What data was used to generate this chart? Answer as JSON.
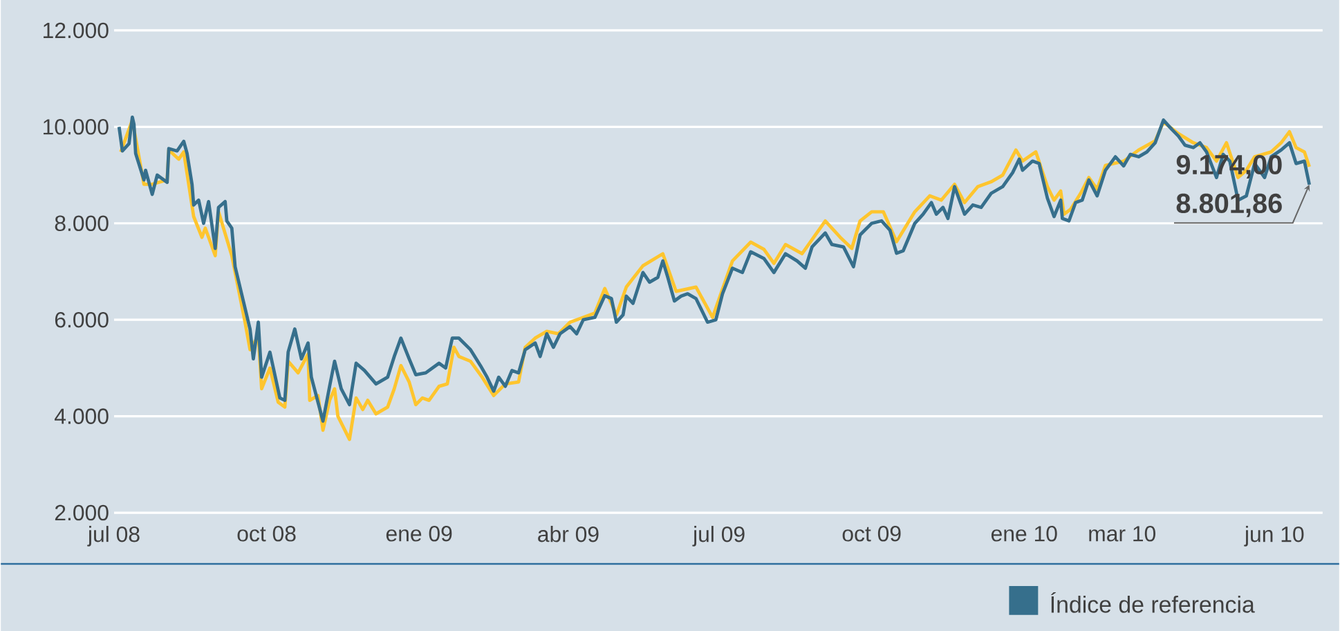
{
  "chart_data": {
    "type": "line",
    "grid": "y",
    "legend": "bottom",
    "xlim": [
      "2008-07-01",
      "2010-06-30"
    ],
    "xticks": [
      {
        "value": "2008-07-01",
        "label": "jul 08"
      },
      {
        "value": "2008-10-01",
        "label": "oct 08"
      },
      {
        "value": "2009-01-01",
        "label": "ene 09"
      },
      {
        "value": "2009-04-01",
        "label": "abr 09"
      },
      {
        "value": "2009-07-01",
        "label": "jul 09"
      },
      {
        "value": "2009-10-01",
        "label": "oct 09"
      },
      {
        "value": "2010-01-01",
        "label": "ene 10"
      },
      {
        "value": "2010-03-01",
        "label": "mar 10"
      },
      {
        "value": "2010-06-01",
        "label": "jun 10"
      }
    ],
    "ylim": [
      2000,
      12000
    ],
    "yticks": [
      {
        "value": 2000,
        "label": "2.000"
      },
      {
        "value": 4000,
        "label": "4.000"
      },
      {
        "value": 6000,
        "label": "6.000"
      },
      {
        "value": 8000,
        "label": "8.000"
      },
      {
        "value": 10000,
        "label": "10.000"
      },
      {
        "value": 12000,
        "label": "12.000"
      }
    ],
    "series": [
      {
        "color": "#fec52e",
        "x": [
          "2008-07-05",
          "2008-07-12",
          "2008-07-19",
          "2008-07-24",
          "2008-08-02",
          "2008-08-03",
          "2008-08-09",
          "2008-08-12",
          "2008-08-18",
          "2008-08-23",
          "2008-08-25",
          "2008-08-31",
          "2008-09-02",
          "2008-09-10",
          "2008-09-18",
          "2008-09-21",
          "2008-09-26",
          "2008-09-28",
          "2008-10-03",
          "2008-10-08",
          "2008-10-12",
          "2008-10-14",
          "2008-10-20",
          "2008-10-26",
          "2008-10-27",
          "2008-11-01",
          "2008-11-04",
          "2008-11-08",
          "2008-11-11",
          "2008-11-13",
          "2008-11-20",
          "2008-11-24",
          "2008-11-28",
          "2008-12-01",
          "2008-12-06",
          "2008-12-13",
          "2008-12-17",
          "2008-12-21",
          "2008-12-26",
          "2008-12-30",
          "2009-01-03",
          "2009-01-07",
          "2009-01-13",
          "2009-01-18",
          "2009-01-22",
          "2009-01-25",
          "2009-02-01",
          "2009-02-08",
          "2009-02-15",
          "2009-02-22",
          "2009-03-02",
          "2009-03-06",
          "2009-03-12",
          "2009-03-19",
          "2009-03-26",
          "2009-04-02",
          "2009-04-10",
          "2009-04-17",
          "2009-04-23",
          "2009-04-30",
          "2009-05-06",
          "2009-05-16",
          "2009-05-28",
          "2009-06-05",
          "2009-06-17",
          "2009-06-27",
          "2009-07-09",
          "2009-07-20",
          "2009-07-28",
          "2009-08-03",
          "2009-08-10",
          "2009-08-20",
          "2009-08-26",
          "2009-09-03",
          "2009-09-12",
          "2009-09-19",
          "2009-09-24",
          "2009-10-01",
          "2009-10-08",
          "2009-10-16",
          "2009-10-27",
          "2009-11-05",
          "2009-11-12",
          "2009-11-20",
          "2009-11-26",
          "2009-12-04",
          "2009-12-12",
          "2009-12-19",
          "2009-12-27",
          "2009-12-31",
          "2010-01-08",
          "2010-01-15",
          "2010-01-19",
          "2010-01-23",
          "2010-01-25",
          "2010-01-29",
          "2010-02-04",
          "2010-02-09",
          "2010-02-14",
          "2010-02-19",
          "2010-03-02",
          "2010-03-11",
          "2010-03-21",
          "2010-03-26",
          "2010-04-04",
          "2010-04-13",
          "2010-04-21",
          "2010-04-27",
          "2010-05-03",
          "2010-05-10",
          "2010-05-15",
          "2010-05-20",
          "2010-05-30",
          "2010-06-05",
          "2010-06-10",
          "2010-06-14",
          "2010-06-19",
          "2010-06-22"
        ],
        "values": [
          9480,
          10140,
          8810,
          8810,
          8900,
          9520,
          9330,
          9480,
          8140,
          7710,
          7900,
          7330,
          8240,
          7330,
          5950,
          5380,
          5670,
          4570,
          5000,
          4290,
          4190,
          5140,
          4900,
          5290,
          4330,
          4430,
          3710,
          4330,
          4570,
          4000,
          3520,
          4380,
          4140,
          4330,
          4050,
          4190,
          4570,
          5050,
          4710,
          4240,
          4380,
          4330,
          4620,
          4670,
          5430,
          5240,
          5140,
          4810,
          4430,
          4670,
          4710,
          5430,
          5620,
          5760,
          5710,
          5950,
          6050,
          6140,
          6650,
          6100,
          6680,
          7120,
          7370,
          6590,
          6680,
          6050,
          7220,
          7610,
          7460,
          7170,
          7560,
          7370,
          7660,
          8050,
          7710,
          7480,
          8050,
          8240,
          8240,
          7620,
          8240,
          8570,
          8480,
          8810,
          8430,
          8760,
          8860,
          9000,
          9520,
          9290,
          9480,
          8760,
          8480,
          8670,
          8190,
          8290,
          8620,
          8950,
          8710,
          9200,
          9290,
          9520,
          9710,
          10100,
          9860,
          9670,
          9570,
          9290,
          9670,
          8950,
          9100,
          9380,
          9480,
          9670,
          9900,
          9570,
          9480,
          9174
        ]
      },
      {
        "name": "Índice de referencia",
        "color": "#366f8c",
        "x": [
          "2008-07-04",
          "2008-07-06",
          "2008-07-10",
          "2008-07-12",
          "2008-07-13",
          "2008-07-14",
          "2008-07-19",
          "2008-07-20",
          "2008-07-24",
          "2008-07-27",
          "2008-08-02",
          "2008-08-03",
          "2008-08-08",
          "2008-08-12",
          "2008-08-14",
          "2008-08-17",
          "2008-08-18",
          "2008-08-21",
          "2008-08-24",
          "2008-08-27",
          "2008-08-31",
          "2008-09-02",
          "2008-09-06",
          "2008-09-07",
          "2008-09-10",
          "2008-09-12",
          "2008-09-18",
          "2008-09-21",
          "2008-09-23",
          "2008-09-26",
          "2008-09-28",
          "2008-10-03",
          "2008-10-09",
          "2008-10-12",
          "2008-10-14",
          "2008-10-18",
          "2008-10-22",
          "2008-10-26",
          "2008-10-28",
          "2008-11-04",
          "2008-11-08",
          "2008-11-11",
          "2008-11-15",
          "2008-11-20",
          "2008-11-24",
          "2008-11-29",
          "2008-12-06",
          "2008-12-13",
          "2008-12-17",
          "2008-12-21",
          "2008-12-26",
          "2008-12-30",
          "2009-01-05",
          "2009-01-13",
          "2009-01-17",
          "2009-01-21",
          "2009-01-25",
          "2009-02-01",
          "2009-02-07",
          "2009-02-11",
          "2009-02-15",
          "2009-02-18",
          "2009-02-22",
          "2009-02-26",
          "2009-03-02",
          "2009-03-06",
          "2009-03-12",
          "2009-03-15",
          "2009-03-19",
          "2009-03-23",
          "2009-03-27",
          "2009-04-02",
          "2009-04-06",
          "2009-04-10",
          "2009-04-17",
          "2009-04-23",
          "2009-04-27",
          "2009-04-30",
          "2009-05-04",
          "2009-05-06",
          "2009-05-10",
          "2009-05-16",
          "2009-05-20",
          "2009-05-25",
          "2009-05-28",
          "2009-05-31",
          "2009-06-04",
          "2009-06-08",
          "2009-06-12",
          "2009-06-17",
          "2009-06-24",
          "2009-06-29",
          "2009-07-03",
          "2009-07-09",
          "2009-07-15",
          "2009-07-20",
          "2009-07-28",
          "2009-08-03",
          "2009-08-10",
          "2009-08-17",
          "2009-08-22",
          "2009-08-26",
          "2009-09-03",
          "2009-09-07",
          "2009-09-14",
          "2009-09-20",
          "2009-09-24",
          "2009-10-01",
          "2009-10-07",
          "2009-10-12",
          "2009-10-16",
          "2009-10-20",
          "2009-10-27",
          "2009-11-01",
          "2009-11-06",
          "2009-11-09",
          "2009-11-13",
          "2009-11-16",
          "2009-11-20",
          "2009-11-26",
          "2009-12-01",
          "2009-12-06",
          "2009-12-12",
          "2009-12-19",
          "2009-12-25",
          "2009-12-29",
          "2009-12-31",
          "2010-01-06",
          "2010-01-10",
          "2010-01-15",
          "2010-01-19",
          "2010-01-23",
          "2010-01-24",
          "2010-01-28",
          "2010-02-01",
          "2010-02-05",
          "2010-02-09",
          "2010-02-14",
          "2010-02-19",
          "2010-02-25",
          "2010-03-02",
          "2010-03-06",
          "2010-03-11",
          "2010-03-16",
          "2010-03-21",
          "2010-03-26",
          "2010-03-31",
          "2010-04-04",
          "2010-04-08",
          "2010-04-13",
          "2010-04-17",
          "2010-04-21",
          "2010-04-27",
          "2010-05-01",
          "2010-05-05",
          "2010-05-10",
          "2010-05-15",
          "2010-05-20",
          "2010-05-26",
          "2010-05-30",
          "2010-06-05",
          "2010-06-10",
          "2010-06-14",
          "2010-06-19",
          "2010-06-22"
        ],
        "values": [
          10000,
          9500,
          9650,
          10200,
          10050,
          9450,
          8900,
          9100,
          8600,
          9000,
          8850,
          9550,
          9500,
          9700,
          9450,
          8810,
          8380,
          8480,
          8000,
          8450,
          7480,
          8330,
          8450,
          8050,
          7900,
          7100,
          6240,
          5810,
          5190,
          5950,
          4810,
          5330,
          4380,
          4330,
          5330,
          5810,
          5190,
          5520,
          4810,
          3900,
          4620,
          5140,
          4570,
          4240,
          5100,
          4950,
          4670,
          4810,
          5240,
          5620,
          5190,
          4860,
          4900,
          5100,
          5000,
          5620,
          5620,
          5380,
          5050,
          4810,
          4520,
          4810,
          4620,
          4950,
          4900,
          5380,
          5520,
          5240,
          5710,
          5430,
          5710,
          5860,
          5710,
          6000,
          6050,
          6500,
          6440,
          5950,
          6100,
          6490,
          6340,
          6980,
          6780,
          6880,
          7220,
          6880,
          6390,
          6490,
          6540,
          6440,
          5950,
          6000,
          6540,
          7070,
          6980,
          7410,
          7270,
          6980,
          7370,
          7220,
          7070,
          7510,
          7800,
          7560,
          7510,
          7100,
          7760,
          8000,
          8050,
          7860,
          7380,
          7430,
          8000,
          8190,
          8430,
          8190,
          8330,
          8100,
          8760,
          8190,
          8380,
          8330,
          8620,
          8760,
          9050,
          9330,
          9100,
          9290,
          9240,
          8520,
          8140,
          8480,
          8100,
          8050,
          8430,
          8480,
          8900,
          8570,
          9100,
          9380,
          9190,
          9430,
          9380,
          9480,
          9670,
          10140,
          9950,
          9810,
          9620,
          9570,
          9670,
          9480,
          8950,
          9430,
          9290,
          8480,
          8570,
          9240,
          8950,
          9380,
          9520,
          9670,
          9240,
          9290,
          8801.86
        ]
      }
    ],
    "annotations": [
      {
        "text": "9.174,00",
        "x": "2010-06-22",
        "y": 9174
      },
      {
        "text": "8.801,86",
        "x": "2010-06-22",
        "y": 8801.86
      }
    ]
  }
}
